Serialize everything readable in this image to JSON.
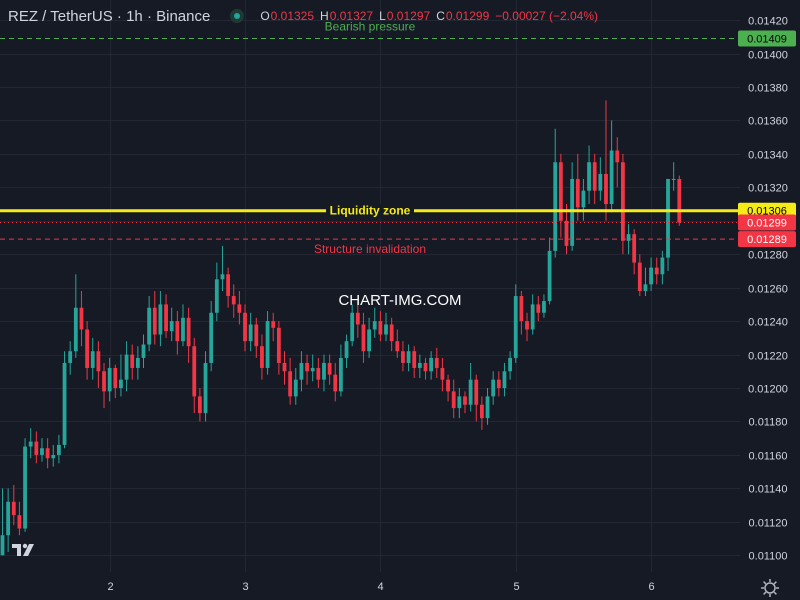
{
  "header": {
    "symbol": "REZ / TetherUS · 1h · Binance",
    "ohlc": [
      {
        "key": "O",
        "value": "0.01325"
      },
      {
        "key": "H",
        "value": "0.01327"
      },
      {
        "key": "L",
        "value": "0.01297"
      },
      {
        "key": "C",
        "value": "0.01299"
      }
    ],
    "change": "−0.00027 (−2.04%)"
  },
  "watermark": "CHART-IMG.COM",
  "colors": {
    "background": "#161a25",
    "grid": "#232733",
    "text": "#d1d4dc",
    "up": "#26a69a",
    "down": "#f23645",
    "yellow": "#f5eb16",
    "green": "#4caf50",
    "red": "#f23645"
  },
  "chart_data": {
    "type": "candlestick",
    "timeframe": "1h",
    "y_axis": {
      "range": [
        0.0109,
        0.01432
      ],
      "ticks": [
        "0.01100",
        "0.01120",
        "0.01140",
        "0.01160",
        "0.01180",
        "0.01200",
        "0.01220",
        "0.01240",
        "0.01260",
        "0.01280",
        "0.01300",
        "0.01320",
        "0.01340",
        "0.01360",
        "0.01380",
        "0.01400",
        "0.01420"
      ]
    },
    "x_axis": {
      "ticks": [
        {
          "label": "2",
          "index": 19
        },
        {
          "label": "3",
          "index": 43
        },
        {
          "label": "4",
          "index": 67
        },
        {
          "label": "5",
          "index": 91
        },
        {
          "label": "6",
          "index": 115
        }
      ]
    },
    "grid": true,
    "horizontal_lines": [
      {
        "label": "Bearish pressure",
        "value": 0.01409,
        "price_label": "0.01409",
        "style": "dashed",
        "color": "#4caf50"
      },
      {
        "label": "Liquidity zone",
        "value": 0.01306,
        "price_label": "0.01306",
        "style": "solid",
        "color": "#f5eb16"
      },
      {
        "label": "Structure invalidation",
        "value": 0.01289,
        "price_label": "0.01289",
        "style": "dashed",
        "color": "#f23645"
      }
    ],
    "last_price": {
      "value": 0.01299,
      "label": "0.01299"
    },
    "candles": [
      [
        0.011,
        0.01112,
        0.011,
        0.0114
      ],
      [
        0.01112,
        0.01132,
        0.01102,
        0.0114
      ],
      [
        0.01132,
        0.01124,
        0.01118,
        0.01142
      ],
      [
        0.01124,
        0.01116,
        0.01112,
        0.01132
      ],
      [
        0.01116,
        0.01165,
        0.01114,
        0.0117
      ],
      [
        0.01165,
        0.01168,
        0.01158,
        0.01176
      ],
      [
        0.01168,
        0.0116,
        0.01155,
        0.01174
      ],
      [
        0.0116,
        0.01164,
        0.01156,
        0.0117
      ],
      [
        0.01164,
        0.01158,
        0.01152,
        0.0117
      ],
      [
        0.01158,
        0.0116,
        0.01153,
        0.01166
      ],
      [
        0.0116,
        0.01166,
        0.01155,
        0.01172
      ],
      [
        0.01166,
        0.01215,
        0.01164,
        0.01222
      ],
      [
        0.01215,
        0.01222,
        0.01208,
        0.01228
      ],
      [
        0.01222,
        0.01248,
        0.01218,
        0.01268
      ],
      [
        0.01248,
        0.01235,
        0.01225,
        0.01258
      ],
      [
        0.01235,
        0.01212,
        0.01205,
        0.0124
      ],
      [
        0.01212,
        0.01222,
        0.01205,
        0.0123
      ],
      [
        0.01222,
        0.0121,
        0.012,
        0.01228
      ],
      [
        0.0121,
        0.01198,
        0.01188,
        0.01215
      ],
      [
        0.01198,
        0.01212,
        0.01192,
        0.01218
      ],
      [
        0.01212,
        0.012,
        0.01194,
        0.01214
      ],
      [
        0.012,
        0.01205,
        0.01195,
        0.0122
      ],
      [
        0.01205,
        0.0122,
        0.01198,
        0.01228
      ],
      [
        0.0122,
        0.01212,
        0.01205,
        0.01226
      ],
      [
        0.01212,
        0.01218,
        0.01205,
        0.01225
      ],
      [
        0.01218,
        0.01226,
        0.01212,
        0.01232
      ],
      [
        0.01226,
        0.01248,
        0.01222,
        0.01255
      ],
      [
        0.01248,
        0.01232,
        0.01226,
        0.01258
      ],
      [
        0.01232,
        0.0125,
        0.01225,
        0.01258
      ],
      [
        0.0125,
        0.01234,
        0.0123,
        0.01256
      ],
      [
        0.01234,
        0.0124,
        0.01228,
        0.01248
      ],
      [
        0.0124,
        0.01228,
        0.0122,
        0.01246
      ],
      [
        0.01228,
        0.01242,
        0.01225,
        0.0125
      ],
      [
        0.01242,
        0.01225,
        0.01215,
        0.01248
      ],
      [
        0.01225,
        0.01195,
        0.01185,
        0.0123
      ],
      [
        0.01195,
        0.01185,
        0.0118,
        0.012
      ],
      [
        0.01185,
        0.01215,
        0.0118,
        0.01222
      ],
      [
        0.01215,
        0.01245,
        0.0121,
        0.01252
      ],
      [
        0.01245,
        0.01265,
        0.0124,
        0.01275
      ],
      [
        0.01265,
        0.01268,
        0.01258,
        0.01285
      ],
      [
        0.01268,
        0.01255,
        0.01248,
        0.01272
      ],
      [
        0.01255,
        0.0125,
        0.01242,
        0.01262
      ],
      [
        0.0125,
        0.01245,
        0.01238,
        0.01258
      ],
      [
        0.01245,
        0.01228,
        0.01222,
        0.0125
      ],
      [
        0.01228,
        0.01238,
        0.01222,
        0.01245
      ],
      [
        0.01238,
        0.01225,
        0.01218,
        0.01242
      ],
      [
        0.01225,
        0.01212,
        0.01205,
        0.01232
      ],
      [
        0.01212,
        0.0124,
        0.01208,
        0.01246
      ],
      [
        0.0124,
        0.01236,
        0.01228,
        0.01245
      ],
      [
        0.01236,
        0.01215,
        0.01208,
        0.0124
      ],
      [
        0.01215,
        0.0121,
        0.01202,
        0.01222
      ],
      [
        0.0121,
        0.01195,
        0.0119,
        0.01218
      ],
      [
        0.01195,
        0.01205,
        0.0119,
        0.01212
      ],
      [
        0.01205,
        0.01215,
        0.01198,
        0.01222
      ],
      [
        0.01215,
        0.0121,
        0.01202,
        0.0122
      ],
      [
        0.0121,
        0.01212,
        0.01204,
        0.0122
      ],
      [
        0.01212,
        0.01205,
        0.012,
        0.01218
      ],
      [
        0.01205,
        0.01215,
        0.01198,
        0.0122
      ],
      [
        0.01215,
        0.01208,
        0.01202,
        0.0122
      ],
      [
        0.01208,
        0.01198,
        0.01192,
        0.01215
      ],
      [
        0.01198,
        0.01218,
        0.01195,
        0.01226
      ],
      [
        0.01218,
        0.01228,
        0.01212,
        0.01232
      ],
      [
        0.01228,
        0.01245,
        0.01225,
        0.0125
      ],
      [
        0.01245,
        0.01238,
        0.0123,
        0.01252
      ],
      [
        0.01238,
        0.01222,
        0.01215,
        0.01245
      ],
      [
        0.01222,
        0.01235,
        0.01218,
        0.01242
      ],
      [
        0.01235,
        0.0124,
        0.0123,
        0.01248
      ],
      [
        0.0124,
        0.01232,
        0.01228,
        0.01246
      ],
      [
        0.01232,
        0.01238,
        0.01228,
        0.01245
      ],
      [
        0.01238,
        0.01228,
        0.01222,
        0.01242
      ],
      [
        0.01228,
        0.01222,
        0.01218,
        0.01235
      ],
      [
        0.01222,
        0.01215,
        0.0121,
        0.01228
      ],
      [
        0.01215,
        0.01222,
        0.0121,
        0.01226
      ],
      [
        0.01222,
        0.01212,
        0.01206,
        0.01225
      ],
      [
        0.01212,
        0.01215,
        0.01206,
        0.0122
      ],
      [
        0.01215,
        0.0121,
        0.01205,
        0.01218
      ],
      [
        0.0121,
        0.01218,
        0.01205,
        0.01222
      ],
      [
        0.01218,
        0.01212,
        0.01206,
        0.01224
      ],
      [
        0.01212,
        0.01205,
        0.01198,
        0.01218
      ],
      [
        0.01205,
        0.01198,
        0.01192,
        0.01208
      ],
      [
        0.01198,
        0.01188,
        0.01182,
        0.01205
      ],
      [
        0.01188,
        0.01195,
        0.01182,
        0.012
      ],
      [
        0.01195,
        0.0119,
        0.01185,
        0.01198
      ],
      [
        0.0119,
        0.01205,
        0.01186,
        0.01215
      ],
      [
        0.01205,
        0.0119,
        0.0118,
        0.01208
      ],
      [
        0.0119,
        0.01182,
        0.01175,
        0.01195
      ],
      [
        0.01182,
        0.01195,
        0.01178,
        0.012
      ],
      [
        0.01195,
        0.01205,
        0.0119,
        0.0121
      ],
      [
        0.01205,
        0.012,
        0.01195,
        0.0121
      ],
      [
        0.012,
        0.0121,
        0.01195,
        0.01215
      ],
      [
        0.0121,
        0.01218,
        0.01205,
        0.01222
      ],
      [
        0.01218,
        0.01255,
        0.01215,
        0.01262
      ],
      [
        0.01255,
        0.0124,
        0.01232,
        0.01258
      ],
      [
        0.0124,
        0.01235,
        0.01228,
        0.01245
      ],
      [
        0.01235,
        0.0125,
        0.01232,
        0.01256
      ],
      [
        0.0125,
        0.01245,
        0.0124,
        0.01255
      ],
      [
        0.01245,
        0.01252,
        0.01242,
        0.01256
      ],
      [
        0.01252,
        0.01282,
        0.0125,
        0.0129
      ],
      [
        0.01282,
        0.01335,
        0.01278,
        0.01355
      ],
      [
        0.01335,
        0.013,
        0.0129,
        0.0134
      ],
      [
        0.013,
        0.01285,
        0.0128,
        0.0131
      ],
      [
        0.01285,
        0.01325,
        0.01282,
        0.01335
      ],
      [
        0.01325,
        0.01308,
        0.013,
        0.0134
      ],
      [
        0.01308,
        0.01318,
        0.013,
        0.01325
      ],
      [
        0.01318,
        0.01335,
        0.0131,
        0.01345
      ],
      [
        0.01335,
        0.01318,
        0.0131,
        0.0134
      ],
      [
        0.01318,
        0.01328,
        0.01312,
        0.01338
      ],
      [
        0.01328,
        0.0131,
        0.013,
        0.01372
      ],
      [
        0.0131,
        0.01342,
        0.01305,
        0.0136
      ],
      [
        0.01342,
        0.01335,
        0.0132,
        0.0135
      ],
      [
        0.01335,
        0.01288,
        0.0128,
        0.0134
      ],
      [
        0.01288,
        0.01292,
        0.0128,
        0.01298
      ],
      [
        0.01292,
        0.01275,
        0.01268,
        0.01295
      ],
      [
        0.01275,
        0.01258,
        0.01255,
        0.0128
      ],
      [
        0.01258,
        0.01262,
        0.01255,
        0.01272
      ],
      [
        0.01262,
        0.01272,
        0.01258,
        0.01278
      ],
      [
        0.01272,
        0.01268,
        0.01262,
        0.01278
      ],
      [
        0.01268,
        0.01278,
        0.01262,
        0.01282
      ],
      [
        0.01278,
        0.01325,
        0.0127,
        0.01325
      ],
      [
        0.01325,
        0.01325,
        0.01318,
        0.01335
      ],
      [
        0.01325,
        0.01299,
        0.01297,
        0.01327
      ]
    ]
  }
}
